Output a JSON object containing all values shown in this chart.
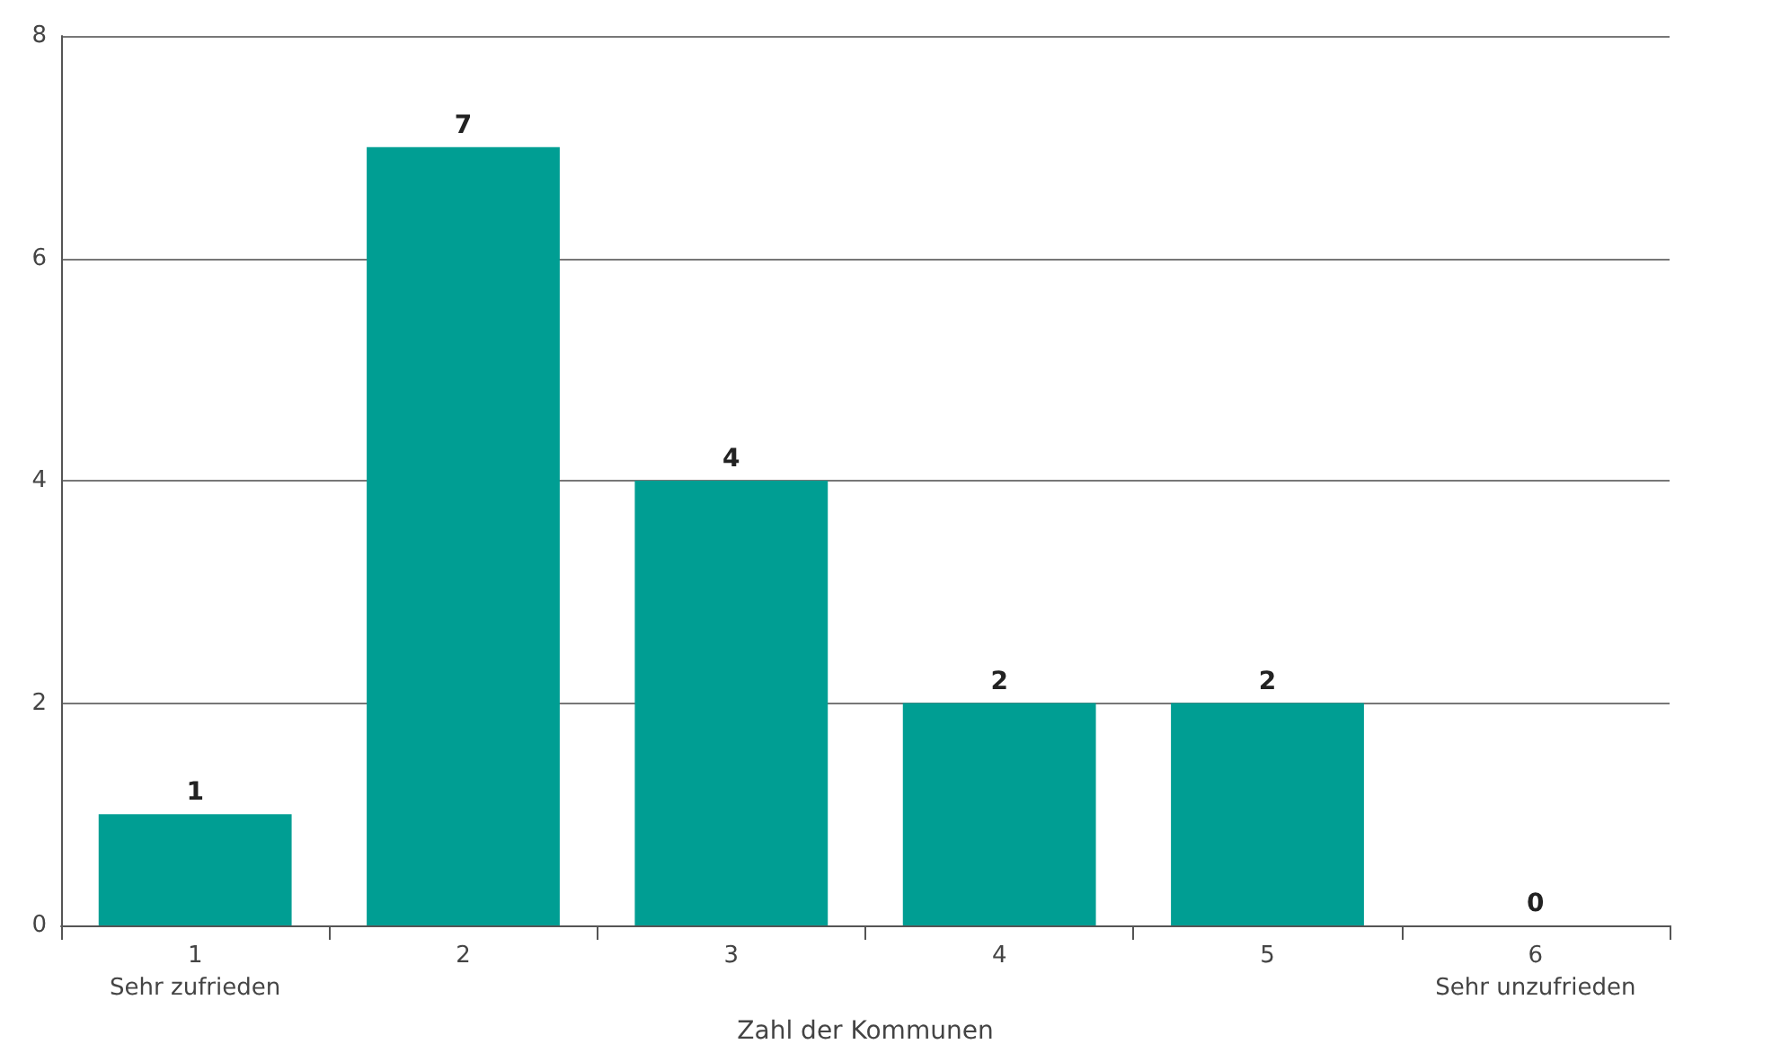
{
  "chart_data": {
    "type": "bar",
    "categories": [
      "1\nSehr zufrieden",
      "2",
      "3",
      "4",
      "5",
      "6\nSehr unzufrieden"
    ],
    "values": [
      1,
      7,
      4,
      2,
      2,
      0
    ],
    "color": "#009e93",
    "xlabel": "Zahl der Kommunen",
    "ylim": [
      0,
      8
    ],
    "yticks": [
      0,
      2,
      4,
      6,
      8
    ],
    "grid": "y",
    "data_labels": true
  }
}
